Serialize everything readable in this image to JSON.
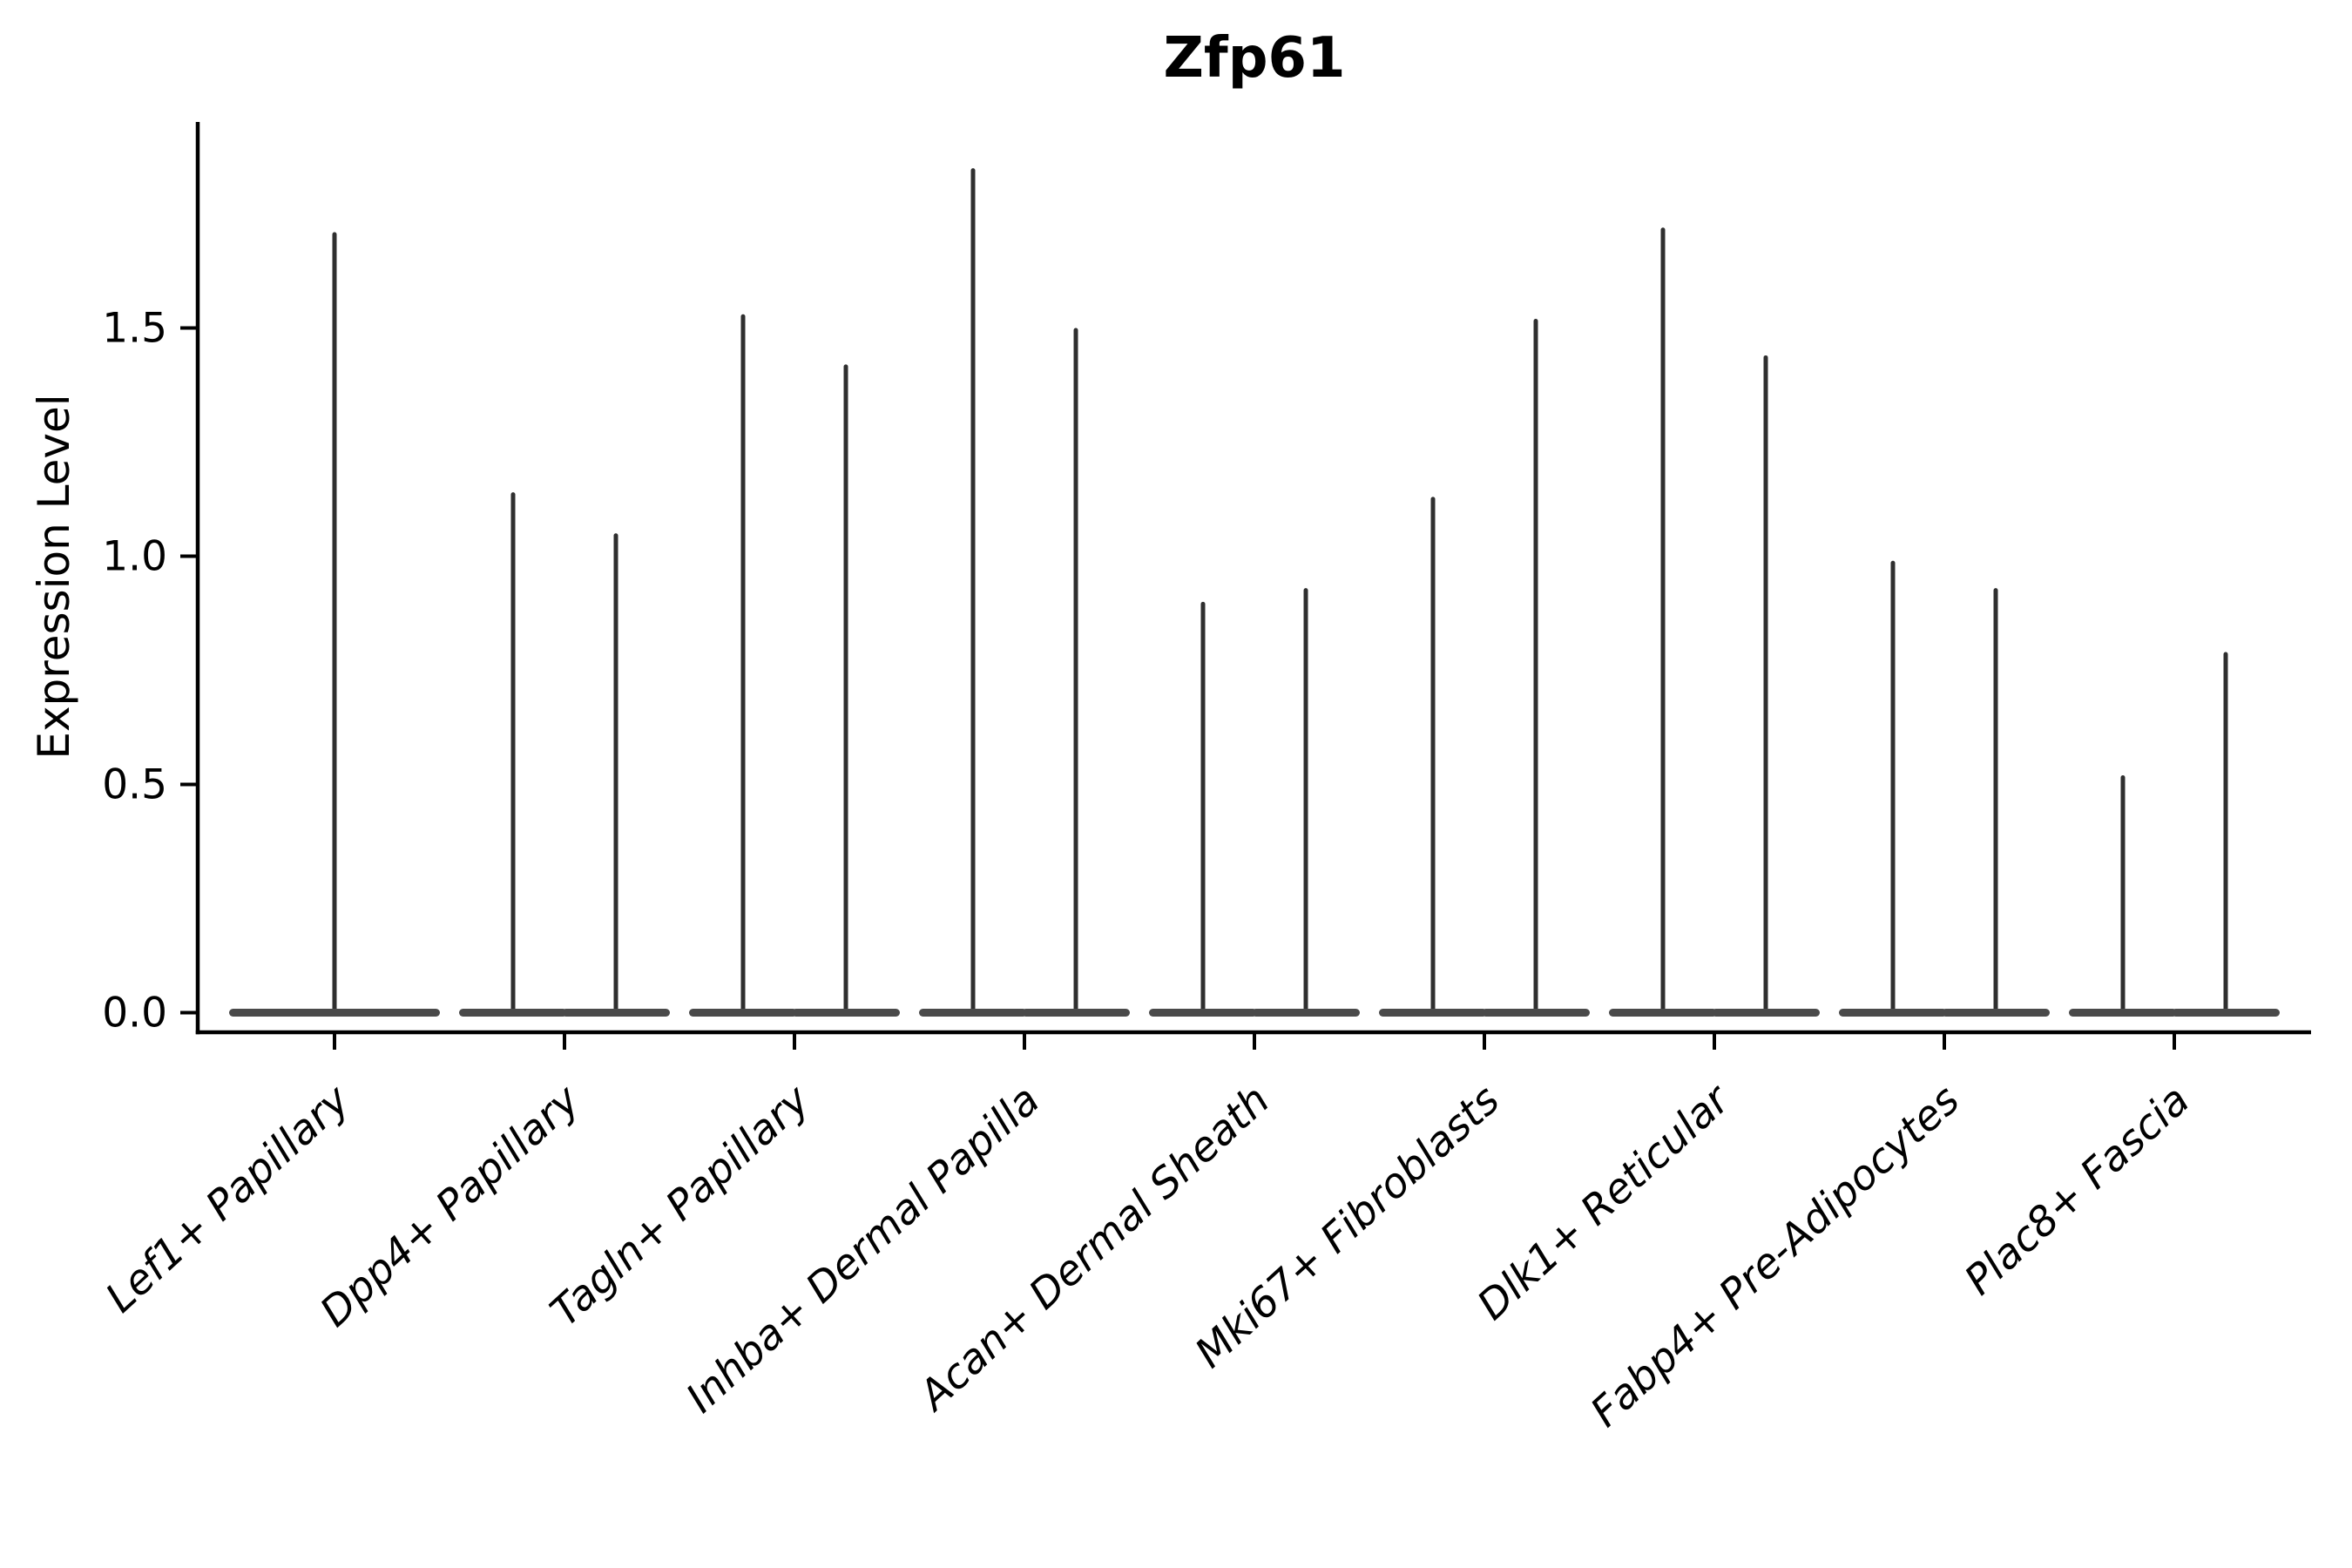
{
  "figure": {
    "title": "Zfp61"
  },
  "chart_data": {
    "type": "violin",
    "title": "Zfp61",
    "xlabel": "",
    "ylabel": "Expression Level",
    "categories": [
      "Lef1+ Papillary",
      "Dpp4+ Papillary",
      "Tagln+ Papillary",
      "Inhba+ Dermal Papilla",
      "Acan+ Dermal Sheath",
      "Mki67+ Fibroblasts",
      "Dlk1+ Reticular",
      "Fabp4+ Pre-Adipocytes",
      "Plac8+ Fascia"
    ],
    "violins": [
      {
        "category": "Lef1+ Papillary",
        "max_expression": [
          1.71
        ]
      },
      {
        "category": "Dpp4+ Papillary",
        "max_expression": [
          1.14,
          1.05
        ]
      },
      {
        "category": "Tagln+ Papillary",
        "max_expression": [
          1.53,
          1.42
        ]
      },
      {
        "category": "Inhba+ Dermal Papilla",
        "max_expression": [
          1.85,
          1.5
        ]
      },
      {
        "category": "Acan+ Dermal Sheath",
        "max_expression": [
          0.9,
          0.93
        ]
      },
      {
        "category": "Mki67+ Fibroblasts",
        "max_expression": [
          1.13,
          1.52
        ]
      },
      {
        "category": "Dlk1+ Reticular",
        "max_expression": [
          1.72,
          1.44
        ]
      },
      {
        "category": "Fabp4+ Pre-Adipocytes",
        "max_expression": [
          0.99,
          0.93
        ]
      },
      {
        "category": "Plac8+ Fascia",
        "max_expression": [
          0.52,
          0.79
        ]
      }
    ],
    "yticks": [
      "0.0",
      "0.5",
      "1.0",
      "1.5"
    ],
    "ytick_values": [
      0,
      0.5,
      1.0,
      1.5
    ],
    "ylim": [
      -0.045,
      1.95
    ],
    "grid": false,
    "legend": null,
    "xtick_rotation_deg": 42.5,
    "xtick_style": "italic",
    "colors": {
      "needle": "#2f2f2f",
      "violin_base": "#4a4a4a",
      "axis": "#000000",
      "text": "#000000",
      "background": "#ffffff"
    }
  }
}
